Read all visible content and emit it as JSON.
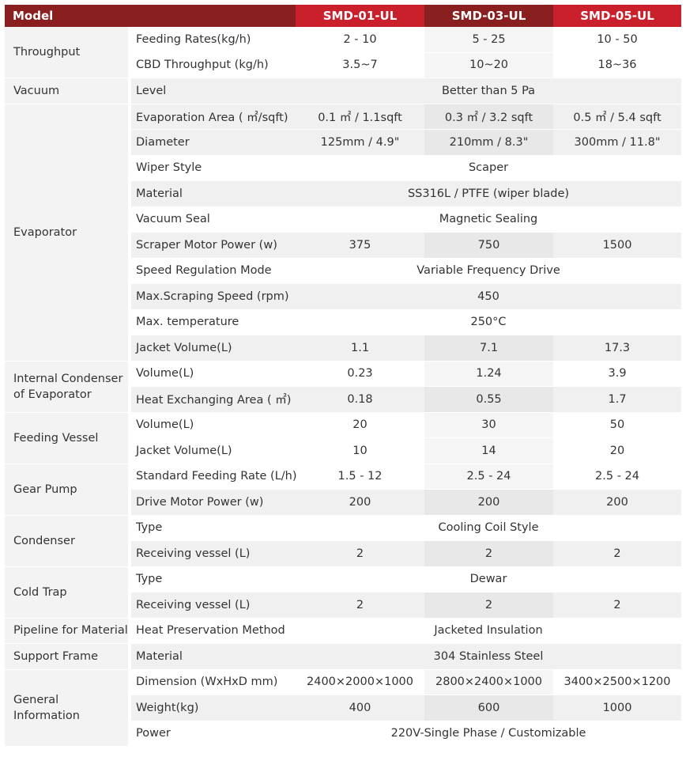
{
  "header": {
    "model_label": "Model",
    "models": [
      "SMD-01-UL",
      "SMD-03-UL",
      "SMD-05-UL"
    ]
  },
  "rows": [
    {
      "cat": "Throughput",
      "param": "Feeding Rates(kg/h)",
      "values": [
        "2 - 10",
        "5 - 25",
        "10 - 50"
      ]
    },
    {
      "param": "CBD Throughput (kg/h)",
      "values": [
        "3.5~7",
        "10~20",
        "18~36"
      ]
    },
    {
      "cat": "Vacuum",
      "param": "Level",
      "value": "Better than 5 Pa"
    },
    {
      "cat": "Evaporator",
      "param": "Evaporation Area ( ㎡/sqft)",
      "values": [
        "0.1 ㎡ / 1.1sqft",
        "0.3 ㎡ / 3.2 sqft",
        "0.5 ㎡ / 5.4 sqft"
      ]
    },
    {
      "param": "Diameter",
      "values": [
        "125mm / 4.9\"",
        "210mm / 8.3\"",
        "300mm / 11.8\""
      ]
    },
    {
      "param": "Wiper Style",
      "value": "Scaper"
    },
    {
      "param": "Material",
      "value": "SS316L / PTFE (wiper blade)"
    },
    {
      "param": "Vacuum Seal",
      "value": "Magnetic Sealing"
    },
    {
      "param": "Scraper Motor Power (w)",
      "values": [
        "375",
        "750",
        "1500"
      ]
    },
    {
      "param": "Speed Regulation Mode",
      "value": "Variable Frequency Drive"
    },
    {
      "param": "Max.Scraping Speed (rpm)",
      "value": "450"
    },
    {
      "param": "Max. temperature",
      "value": "250°C"
    },
    {
      "param": "Jacket Volume(L)",
      "values": [
        "1.1",
        "7.1",
        "17.3"
      ]
    },
    {
      "cat": "Internal Condenser of Evaporator",
      "param": "Volume(L)",
      "values": [
        "0.23",
        "1.24",
        "3.9"
      ]
    },
    {
      "param": "Heat Exchanging Area ( ㎡)",
      "values": [
        "0.18",
        "0.55",
        "1.7"
      ]
    },
    {
      "cat": "Feeding Vessel",
      "param": "Volume(L)",
      "values": [
        "20",
        "30",
        "50"
      ]
    },
    {
      "param": "Jacket Volume(L)",
      "values": [
        "10",
        "14",
        "20"
      ]
    },
    {
      "cat": "Gear Pump",
      "param": "Standard Feeding Rate (L/h)",
      "values": [
        "1.5 - 12",
        "2.5 - 24",
        "2.5 - 24"
      ]
    },
    {
      "param": "Drive Motor Power (w)",
      "values": [
        "200",
        "200",
        "200"
      ]
    },
    {
      "cat": "Condenser",
      "param": "Type",
      "value": "Cooling Coil Style"
    },
    {
      "param": "Receiving vessel (L)",
      "values": [
        "2",
        "2",
        "2"
      ]
    },
    {
      "cat": "Cold Trap",
      "param": "Type",
      "value": "Dewar"
    },
    {
      "param": "Receiving vessel (L)",
      "values": [
        "2",
        "2",
        "2"
      ]
    },
    {
      "cat": "Pipeline for Material",
      "param": "Heat Preservation Method",
      "value": "Jacketed Insulation"
    },
    {
      "cat": "Support Frame",
      "param": "Material",
      "value": "304 Stainless Steel"
    },
    {
      "cat": "General Information",
      "param": "Dimension (WxHxD mm)",
      "values": [
        "2400×2000×1000",
        "2800×2400×1000",
        "3400×2500×1200"
      ]
    },
    {
      "param": "Weight(kg)",
      "values": [
        "400",
        "600",
        "1000"
      ]
    },
    {
      "param": "Power",
      "value": "220V-Single Phase / Customizable"
    }
  ]
}
